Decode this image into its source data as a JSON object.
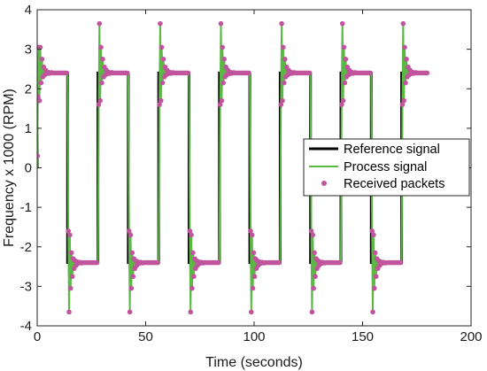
{
  "chart_data": {
    "type": "line",
    "title": "",
    "xlabel": "Time (seconds)",
    "ylabel": "Frequency x 1000 (RPM)",
    "xlim": [
      0,
      200
    ],
    "ylim": [
      -4,
      4
    ],
    "xticks": [
      0,
      50,
      100,
      150,
      200
    ],
    "yticks": [
      -4,
      -3,
      -2,
      -1,
      0,
      1,
      2,
      3,
      4
    ],
    "grid": false,
    "legend_position": "right",
    "square_wave": {
      "period": 28,
      "half_period": 14,
      "start": 0,
      "end": 180,
      "amplitude": 2.4
    },
    "transient_response": {
      "overshoot_peak": 3.65,
      "undershoot": 1.6,
      "settle_level": 2.4,
      "first_overshoot_peak": 3.05
    },
    "series": [
      {
        "name": "Reference signal",
        "color": "#000000",
        "style": "line"
      },
      {
        "name": "Process signal",
        "color": "#5bb845",
        "style": "line"
      },
      {
        "name": "Received packets",
        "color": "#c0559d",
        "style": "markers"
      }
    ],
    "colors": {
      "reference": "#000000",
      "process": "#5bb845",
      "packets": "#c0559d",
      "axis": "#262626"
    }
  }
}
